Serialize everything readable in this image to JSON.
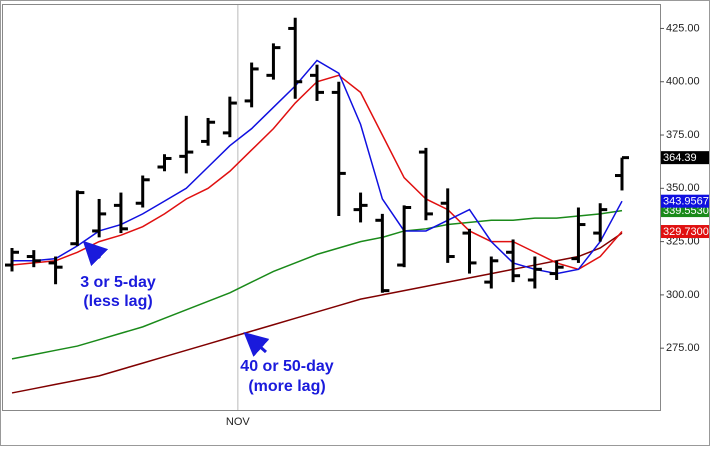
{
  "chart_data": {
    "type": "ohlc",
    "categories": [
      null,
      null,
      null,
      null,
      null,
      null,
      null,
      null,
      null,
      null,
      "NOV",
      null,
      null,
      null,
      null,
      null,
      null,
      null,
      null,
      null,
      null,
      null,
      null,
      null,
      null,
      null,
      null,
      null,
      null
    ],
    "bars": {
      "color": "#000000",
      "open": [
        314,
        318,
        315,
        324,
        330,
        342,
        343,
        360,
        365,
        372,
        376,
        391,
        403,
        425,
        403,
        395,
        340,
        335,
        314,
        367,
        343,
        329,
        306,
        320,
        307,
        310,
        317,
        329,
        356
      ],
      "high": [
        322,
        321,
        318,
        349,
        345,
        348,
        356,
        366,
        384,
        383,
        393,
        409,
        418,
        430,
        408,
        400,
        348,
        338,
        342,
        369,
        350,
        331,
        318,
        326,
        318,
        316,
        341,
        343,
        364.39
      ],
      "low": [
        311,
        313,
        305,
        323,
        327,
        329,
        341,
        358,
        357,
        370,
        374,
        388,
        401,
        392,
        391,
        337,
        334,
        301,
        313,
        335,
        315,
        310,
        303,
        306,
        303,
        307,
        315,
        325,
        349
      ],
      "close": [
        320,
        316,
        313,
        348,
        338,
        331,
        354,
        364,
        367,
        381,
        390,
        406,
        416,
        400,
        395,
        357,
        342,
        302,
        341,
        338,
        318,
        315,
        316,
        309,
        312,
        313,
        333,
        340,
        364.39
      ],
      "last_color": "#000000"
    },
    "series": [
      {
        "color": "#800000",
        "values": [
          254,
          256,
          258,
          260,
          262,
          265,
          268,
          271,
          274,
          277,
          280,
          283,
          286,
          289,
          292,
          295,
          298,
          300,
          302,
          304,
          306,
          308,
          310,
          312,
          314,
          316,
          318,
          322,
          329
        ],
        "last_label": null
      },
      {
        "color": "#1a8a1a",
        "values": [
          270,
          272,
          274,
          276,
          279,
          282,
          285,
          289,
          293,
          297,
          301,
          306,
          311,
          315,
          319,
          322,
          325,
          327,
          330,
          331,
          333,
          334,
          335,
          335,
          336,
          336,
          337,
          338,
          339.553
        ],
        "last_label": "339.5530"
      },
      {
        "color": "#e01010",
        "values": [
          314,
          315,
          316,
          320,
          325,
          328,
          332,
          338,
          345,
          350,
          358,
          368,
          378,
          390,
          400,
          403,
          395,
          375,
          355,
          345,
          340,
          330,
          325,
          325,
          320,
          315,
          312,
          318,
          329.73
        ],
        "last_label": "329.7300"
      },
      {
        "color": "#1010e0",
        "values": [
          316,
          316,
          317,
          323,
          330,
          333,
          338,
          344,
          350,
          360,
          370,
          378,
          388,
          398,
          410,
          404,
          380,
          345,
          330,
          330,
          335,
          340,
          325,
          315,
          312,
          310,
          312,
          325,
          343.9567
        ],
        "last_label": "343.9567"
      }
    ],
    "ylim": [
      246,
      436
    ],
    "yticks": [
      {
        "value": 275,
        "label": "275.00"
      },
      {
        "value": 300,
        "label": "300.00"
      },
      {
        "value": 325,
        "label": "325.00"
      },
      {
        "value": 350,
        "label": "350.00"
      },
      {
        "value": 375,
        "label": "375.00"
      },
      {
        "value": 400,
        "label": "400.00"
      },
      {
        "value": 425,
        "label": "425.00"
      }
    ],
    "grid": false,
    "annotations": [
      {
        "lines": [
          "3 or 5-day",
          "(less lag)"
        ]
      },
      {
        "lines": [
          "40 or 50-day",
          "(more lag)"
        ]
      }
    ]
  }
}
